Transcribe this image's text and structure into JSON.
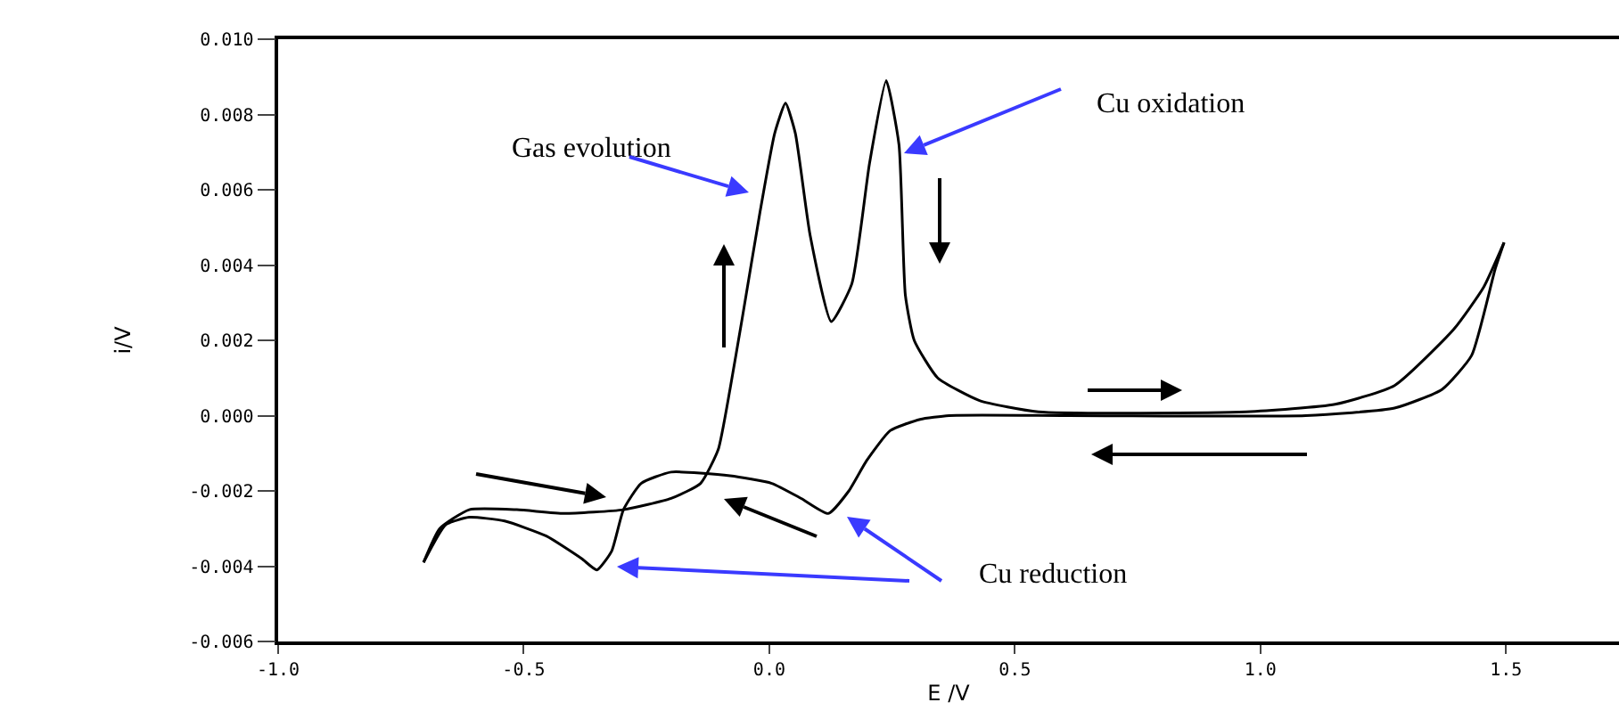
{
  "chart_data": {
    "type": "line",
    "xlabel": "E /V",
    "ylabel": "i/V",
    "xlim": [
      -1.0,
      1.73
    ],
    "xticks": [
      {
        "value": -1.0,
        "label": "-1.0"
      },
      {
        "value": -0.5,
        "label": "-0.5"
      },
      {
        "value": 0,
        "label": "0.0"
      },
      {
        "value": 0.5,
        "label": "0.5"
      },
      {
        "value": 1.0,
        "label": "1.0"
      },
      {
        "value": 1.5,
        "label": "1.5"
      }
    ],
    "ylim": [
      -0.006,
      0.01
    ],
    "yticks": [
      {
        "value": -0.006,
        "label": "-0.006"
      },
      {
        "value": -0.004,
        "label": "-0.004"
      },
      {
        "value": -0.002,
        "label": "-0.002"
      },
      {
        "value": 0,
        "label": "0.000"
      },
      {
        "value": 0.002,
        "label": "0.002"
      },
      {
        "value": 0.004,
        "label": "0.004"
      },
      {
        "value": 0.006,
        "label": "0.006"
      },
      {
        "value": 0.008,
        "label": "0.008"
      },
      {
        "value": 0.01,
        "label": "0.010"
      }
    ],
    "grid": false,
    "marker": "none",
    "line_style": "solid",
    "series": [
      {
        "color": "#000000",
        "x": [
          -0.704,
          -0.671,
          -0.611,
          -0.514,
          -0.418,
          -0.297,
          -0.2,
          -0.14,
          -0.104,
          -0.08,
          -0.055,
          -0.019,
          0.011,
          0.033,
          0.053,
          0.083,
          0.126,
          0.168,
          0.204,
          0.238,
          0.264,
          0.277,
          0.295,
          0.343,
          0.428,
          0.548,
          0.971,
          1.152,
          1.273,
          1.394,
          1.454,
          1.496
        ],
        "values": [
          -0.0039,
          -0.003,
          -0.0025,
          -0.0025,
          -0.0026,
          -0.0025,
          -0.0022,
          -0.0018,
          -0.0009,
          0.0007,
          0.0026,
          0.0054,
          0.0075,
          0.0083,
          0.0075,
          0.0048,
          0.0025,
          0.0035,
          0.0067,
          0.0089,
          0.0072,
          0.0032,
          0.002,
          0.001,
          0.0004,
          0.0001,
          0.0001,
          0.0003,
          0.0008,
          0.0023,
          0.0034,
          0.0046
        ]
      },
      {
        "color": "#000000",
        "x": [
          1.496,
          1.478,
          1.43,
          1.37,
          1.273,
          1.092,
          0.609,
          0.366,
          0.307,
          0.246,
          0.198,
          0.162,
          0.12,
          0.065,
          0.005,
          -0.08,
          -0.2,
          -0.261,
          -0.297,
          -0.321,
          -0.351,
          -0.382,
          -0.454,
          -0.539,
          -0.611,
          -0.659,
          -0.704
        ],
        "values": [
          0.0046,
          0.0039,
          0.0016,
          0.0007,
          0.0002,
          0.0,
          0.0,
          0.0,
          -0.0001,
          -0.0004,
          -0.0012,
          -0.002,
          -0.0026,
          -0.0022,
          -0.0018,
          -0.0016,
          -0.0015,
          -0.0018,
          -0.0025,
          -0.0036,
          -0.0041,
          -0.0038,
          -0.0032,
          -0.0028,
          -0.0027,
          -0.0029,
          -0.0039
        ]
      }
    ],
    "annotations": [
      "Gas evolution",
      "Cu oxidation",
      "Cu reduction"
    ]
  }
}
